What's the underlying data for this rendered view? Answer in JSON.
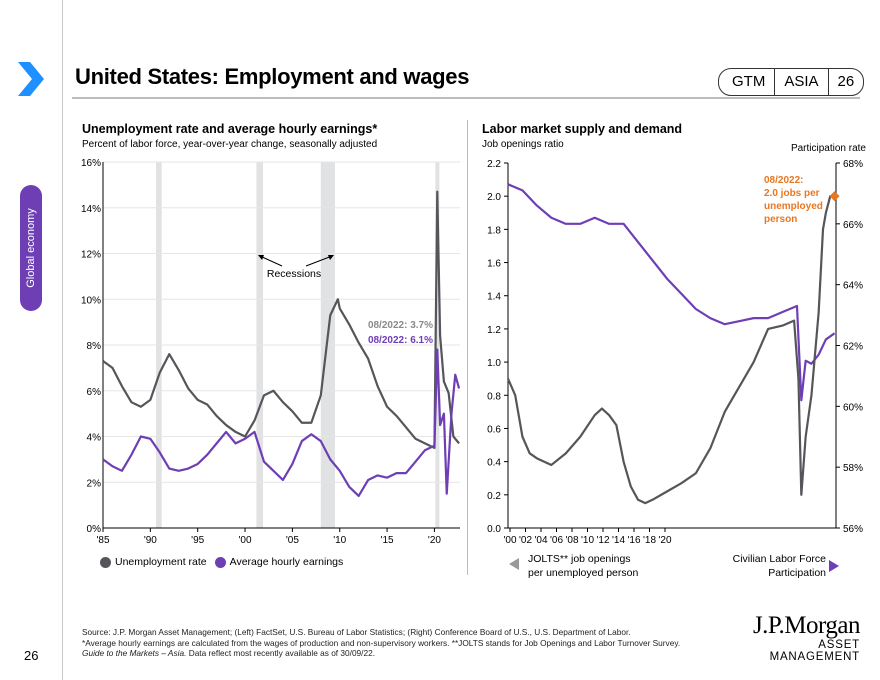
{
  "header": {
    "title": "United States: Employment and wages",
    "badge": [
      "GTM",
      "ASIA",
      "26"
    ],
    "section": "Global economy",
    "page_number": "26"
  },
  "colors": {
    "unemployment": "#54565a",
    "earnings": "#6e3fb4",
    "recession": "#e1e2e4",
    "annotation": "#e87722",
    "chevron": "#1e90ff"
  },
  "left_chart_text": {
    "title": "Unemployment rate and average hourly earnings*",
    "subtitle": "Percent of labor force, year-over-year change, seasonally adjusted",
    "recessions_label": "Recessions",
    "annot_unemp": "08/2022: 3.7%",
    "annot_ahe": "08/2022: 6.1%",
    "legend": [
      "Unemployment rate",
      "Average hourly earnings"
    ]
  },
  "right_chart_text": {
    "title": "Labor market supply and demand",
    "subtitle": "Job openings ratio",
    "right_axis_title": "Participation rate",
    "annot": [
      "08/2022:",
      "2.0 jobs per",
      "unemployed",
      "person"
    ],
    "left_legend": [
      "JOLTS** job openings",
      "per unemployed person"
    ],
    "right_legend": [
      "Civilian Labor Force",
      "Participation"
    ]
  },
  "chart_data": [
    {
      "type": "line",
      "title": "Unemployment rate and average hourly earnings*",
      "ylim": [
        0,
        16
      ],
      "xlim": [
        1985,
        2022.7
      ],
      "yticks": [
        "0%",
        "2%",
        "4%",
        "6%",
        "8%",
        "10%",
        "12%",
        "14%",
        "16%"
      ],
      "xticks": [
        "'85",
        "'90",
        "'95",
        "'00",
        "'05",
        "'10",
        "'15",
        "'20"
      ],
      "recessions": [
        [
          1990.6,
          1991.2
        ],
        [
          2001.2,
          2001.9
        ],
        [
          2008.0,
          2009.5
        ],
        [
          2020.1,
          2020.4
        ]
      ],
      "series": [
        {
          "name": "Unemployment rate",
          "x": [
            1985,
            1986,
            1987,
            1988,
            1989,
            1990,
            1991,
            1992,
            1993,
            1994,
            1995,
            1996,
            1997,
            1998,
            1999,
            2000,
            2001,
            2002,
            2003,
            2004,
            2005,
            2006,
            2007,
            2008,
            2009,
            2009.8,
            2010,
            2011,
            2012,
            2013,
            2014,
            2015,
            2016,
            2017,
            2018,
            2019,
            2020.0,
            2020.3,
            2020.6,
            2021,
            2021.5,
            2022,
            2022.6
          ],
          "y": [
            7.3,
            7.0,
            6.2,
            5.5,
            5.3,
            5.6,
            6.8,
            7.6,
            6.9,
            6.1,
            5.6,
            5.4,
            4.9,
            4.5,
            4.2,
            4.0,
            4.7,
            5.8,
            6.0,
            5.5,
            5.1,
            4.6,
            4.6,
            5.8,
            9.3,
            10.0,
            9.6,
            8.9,
            8.1,
            7.4,
            6.2,
            5.3,
            4.9,
            4.4,
            3.9,
            3.7,
            3.5,
            14.7,
            8.4,
            6.4,
            5.9,
            4.0,
            3.7
          ]
        },
        {
          "name": "Average hourly earnings",
          "x": [
            1985,
            1986,
            1987,
            1988,
            1989,
            1990,
            1991,
            1992,
            1993,
            1994,
            1995,
            1996,
            1997,
            1998,
            1999,
            2000,
            2001,
            2002,
            2003,
            2004,
            2005,
            2006,
            2007,
            2008,
            2009,
            2010,
            2011,
            2012,
            2013,
            2014,
            2015,
            2016,
            2017,
            2018,
            2019,
            2020.0,
            2020.3,
            2020.6,
            2021.0,
            2021.3,
            2021.8,
            2022.2,
            2022.6
          ],
          "y": [
            3.0,
            2.7,
            2.5,
            3.2,
            4.0,
            3.9,
            3.3,
            2.6,
            2.5,
            2.6,
            2.8,
            3.2,
            3.7,
            4.2,
            3.7,
            3.9,
            4.2,
            2.9,
            2.5,
            2.1,
            2.8,
            3.8,
            4.1,
            3.8,
            3.0,
            2.5,
            1.8,
            1.4,
            2.1,
            2.3,
            2.2,
            2.4,
            2.4,
            2.9,
            3.4,
            3.6,
            7.8,
            4.5,
            5.0,
            1.5,
            5.0,
            6.7,
            6.1
          ]
        }
      ]
    },
    {
      "type": "line",
      "title": "Labor market supply and demand",
      "ylabel": "Job openings ratio",
      "y2label": "Participation rate",
      "ylim": [
        0,
        2.2
      ],
      "y2lim": [
        56,
        68
      ],
      "xlim": [
        2000,
        2022.7
      ],
      "yticks": [
        "0.0",
        "0.2",
        "0.4",
        "0.6",
        "0.8",
        "1.0",
        "1.2",
        "1.4",
        "1.6",
        "1.8",
        "2.0",
        "2.2"
      ],
      "y2ticks": [
        "56%",
        "58%",
        "60%",
        "62%",
        "64%",
        "66%",
        "68%"
      ],
      "xticks": [
        "'00",
        "'02",
        "'04",
        "'06",
        "'08",
        "'10",
        "'12",
        "'14",
        "'16",
        "'18",
        "'20"
      ],
      "series": [
        {
          "name": "JOLTS** job openings per unemployed person",
          "axis": "left",
          "x": [
            2000,
            2000.5,
            2001,
            2001.5,
            2002,
            2003,
            2004,
            2005,
            2006,
            2006.5,
            2007,
            2007.5,
            2008,
            2008.5,
            2009,
            2009.5,
            2010,
            2011,
            2012,
            2013,
            2014,
            2015,
            2016,
            2017,
            2018,
            2019,
            2019.8,
            2020.1,
            2020.3,
            2020.6,
            2021,
            2021.5,
            2021.8,
            2022,
            2022.3,
            2022.6
          ],
          "y": [
            0.9,
            0.8,
            0.55,
            0.45,
            0.42,
            0.38,
            0.45,
            0.55,
            0.68,
            0.72,
            0.68,
            0.62,
            0.4,
            0.25,
            0.17,
            0.15,
            0.17,
            0.22,
            0.27,
            0.33,
            0.48,
            0.7,
            0.85,
            1.0,
            1.2,
            1.22,
            1.25,
            0.9,
            0.2,
            0.55,
            0.8,
            1.3,
            1.8,
            1.9,
            2.0,
            2.0
          ]
        },
        {
          "name": "Civilian Labor Force Participation",
          "axis": "right",
          "x": [
            2000,
            2001,
            2002,
            2003,
            2004,
            2005,
            2006,
            2007,
            2008,
            2009,
            2010,
            2011,
            2012,
            2013,
            2014,
            2015,
            2016,
            2017,
            2018,
            2019,
            2020.0,
            2020.3,
            2020.6,
            2021,
            2021.5,
            2022,
            2022.6
          ],
          "y": [
            67.3,
            67.1,
            66.6,
            66.2,
            66.0,
            66.0,
            66.2,
            66.0,
            66.0,
            65.4,
            64.8,
            64.2,
            63.7,
            63.2,
            62.9,
            62.7,
            62.8,
            62.9,
            62.9,
            63.1,
            63.3,
            60.2,
            61.5,
            61.4,
            61.7,
            62.2,
            62.4
          ]
        }
      ]
    }
  ],
  "footer": {
    "lines": [
      "Source: J.P. Morgan Asset Management; (Left) FactSet, U.S. Bureau of Labor Statistics; (Right) Conference Board of U.S., U.S. Department of Labor.",
      "*Average hourly earnings are calculated from the wages of production and non-supervisory workers. **JOLTS stands for Job Openings and Labor Turnover Survey."
    ],
    "guide": "Guide to the Markets – Asia.",
    "guide_rest": " Data reflect most recently available as of 30/09/22.",
    "logo": [
      "J.P.Morgan",
      "ASSET MANAGEMENT"
    ]
  }
}
